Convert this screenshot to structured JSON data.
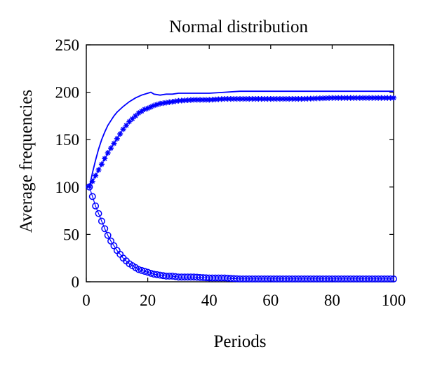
{
  "chart_data": {
    "type": "line",
    "title": "Normal distribution",
    "xlabel": "Periods",
    "ylabel": "Average frequencies",
    "xlim": [
      0,
      100
    ],
    "ylim": [
      0,
      250
    ],
    "xticks": [
      0,
      20,
      40,
      60,
      80,
      100
    ],
    "yticks": [
      0,
      50,
      100,
      150,
      200,
      250
    ],
    "grid": false,
    "color": "#0000ff",
    "series": [
      {
        "marker": "none",
        "x": [
          1,
          2,
          3,
          4,
          5,
          6,
          7,
          8,
          9,
          10,
          12,
          14,
          16,
          18,
          20,
          21,
          22,
          24,
          26,
          28,
          30,
          35,
          40,
          45,
          50,
          55,
          60,
          70,
          80,
          90,
          100
        ],
        "y": [
          100,
          115,
          128,
          140,
          150,
          158,
          165,
          170,
          175,
          179,
          185,
          190,
          194,
          197,
          199,
          200,
          198,
          197,
          198,
          198,
          199,
          199,
          199,
          200,
          201,
          201,
          201,
          201,
          201,
          201,
          201
        ]
      },
      {
        "marker": "asterisk",
        "x": [
          1,
          2,
          3,
          4,
          5,
          6,
          7,
          8,
          9,
          10,
          11,
          12,
          13,
          14,
          15,
          16,
          17,
          18,
          19,
          20,
          22,
          24,
          26,
          28,
          30,
          35,
          40,
          45,
          50,
          60,
          70,
          80,
          90,
          100
        ],
        "y": [
          101,
          106,
          112,
          118,
          124,
          130,
          136,
          141,
          146,
          151,
          156,
          161,
          165,
          169,
          172,
          175,
          178,
          180,
          182,
          183,
          186,
          188,
          189,
          190,
          191,
          192,
          192,
          193,
          193,
          193,
          193,
          194,
          194,
          194
        ]
      },
      {
        "marker": "circle",
        "x": [
          1,
          2,
          3,
          4,
          5,
          6,
          7,
          8,
          9,
          10,
          11,
          12,
          13,
          14,
          15,
          16,
          17,
          18,
          19,
          20,
          22,
          24,
          26,
          28,
          30,
          35,
          40,
          45,
          50,
          60,
          70,
          80,
          90,
          100
        ],
        "y": [
          100,
          90,
          80,
          72,
          64,
          56,
          49,
          43,
          38,
          33,
          29,
          25,
          22,
          19,
          17,
          15,
          13,
          12,
          11,
          10,
          8,
          7,
          6,
          6,
          5,
          5,
          4,
          4,
          3,
          3,
          3,
          3,
          3,
          3
        ]
      }
    ]
  }
}
